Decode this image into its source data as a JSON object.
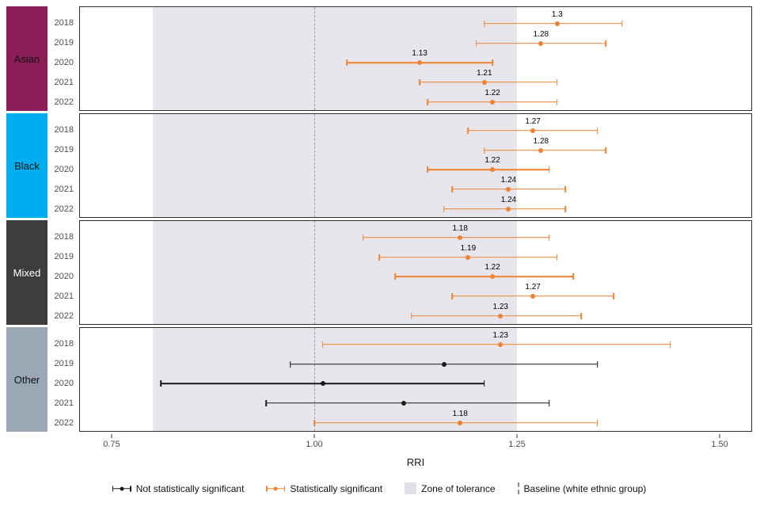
{
  "chart_data": {
    "type": "forest",
    "title": "",
    "xlabel": "RRI",
    "x_range": [
      0.71,
      1.54
    ],
    "x_ticks": [
      {
        "value": 0.75,
        "label": "0.75"
      },
      {
        "value": 1.0,
        "label": "1.00"
      },
      {
        "value": 1.25,
        "label": "1.25"
      },
      {
        "value": 1.5,
        "label": "1.50"
      }
    ],
    "zone_of_tolerance": {
      "from": 0.8,
      "to": 1.25,
      "color": "#e6e6ec"
    },
    "baseline": {
      "value": 1.0,
      "color": "#9b9b9b"
    },
    "colors": {
      "significant": "#ee8233",
      "not_significant": "#1a1a1a"
    },
    "groups": [
      {
        "name": "Asian",
        "color": "#8b1e57",
        "text_color": "#111111",
        "rows": [
          {
            "year": "2018",
            "value": 1.3,
            "label": "1.3",
            "lo": 1.21,
            "hi": 1.38,
            "significant": true
          },
          {
            "year": "2019",
            "value": 1.28,
            "label": "1.28",
            "lo": 1.2,
            "hi": 1.36,
            "significant": true
          },
          {
            "year": "2020",
            "value": 1.13,
            "label": "1.13",
            "lo": 1.04,
            "hi": 1.22,
            "significant": true
          },
          {
            "year": "2021",
            "value": 1.21,
            "label": "1.21",
            "lo": 1.13,
            "hi": 1.3,
            "significant": true
          },
          {
            "year": "2022",
            "value": 1.22,
            "label": "1.22",
            "lo": 1.14,
            "hi": 1.3,
            "significant": true
          }
        ]
      },
      {
        "name": "Black",
        "color": "#00aeef",
        "text_color": "#111111",
        "rows": [
          {
            "year": "2018",
            "value": 1.27,
            "label": "1.27",
            "lo": 1.19,
            "hi": 1.35,
            "significant": true
          },
          {
            "year": "2019",
            "value": 1.28,
            "label": "1.28",
            "lo": 1.21,
            "hi": 1.36,
            "significant": true
          },
          {
            "year": "2020",
            "value": 1.22,
            "label": "1.22",
            "lo": 1.14,
            "hi": 1.29,
            "significant": true
          },
          {
            "year": "2021",
            "value": 1.24,
            "label": "1.24",
            "lo": 1.17,
            "hi": 1.31,
            "significant": true
          },
          {
            "year": "2022",
            "value": 1.24,
            "label": "1.24",
            "lo": 1.16,
            "hi": 1.31,
            "significant": true
          }
        ]
      },
      {
        "name": "Mixed",
        "color": "#3d3d3d",
        "text_color": "#ffffff",
        "rows": [
          {
            "year": "2018",
            "value": 1.18,
            "label": "1.18",
            "lo": 1.06,
            "hi": 1.29,
            "significant": true
          },
          {
            "year": "2019",
            "value": 1.19,
            "label": "1.19",
            "lo": 1.08,
            "hi": 1.3,
            "significant": true
          },
          {
            "year": "2020",
            "value": 1.22,
            "label": "1.22",
            "lo": 1.1,
            "hi": 1.32,
            "significant": true
          },
          {
            "year": "2021",
            "value": 1.27,
            "label": "1.27",
            "lo": 1.17,
            "hi": 1.37,
            "significant": true
          },
          {
            "year": "2022",
            "value": 1.23,
            "label": "1.23",
            "lo": 1.12,
            "hi": 1.33,
            "significant": true
          }
        ]
      },
      {
        "name": "Other",
        "color": "#9aa7b5",
        "text_color": "#111111",
        "rows": [
          {
            "year": "2018",
            "value": 1.23,
            "label": "1.23",
            "lo": 1.01,
            "hi": 1.44,
            "significant": true
          },
          {
            "year": "2019",
            "value": 1.16,
            "label": "",
            "lo": 0.97,
            "hi": 1.35,
            "significant": false
          },
          {
            "year": "2020",
            "value": 1.01,
            "label": "",
            "lo": 0.81,
            "hi": 1.21,
            "significant": false
          },
          {
            "year": "2021",
            "value": 1.11,
            "label": "",
            "lo": 0.94,
            "hi": 1.29,
            "significant": false
          },
          {
            "year": "2022",
            "value": 1.18,
            "label": "1.18",
            "lo": 1.0,
            "hi": 1.35,
            "significant": true
          }
        ]
      }
    ]
  },
  "legend": {
    "items": [
      {
        "label": "Not statistically significant",
        "type": "errorbar",
        "color": "#1a1a1a"
      },
      {
        "label": "Statistically significant",
        "type": "errorbar",
        "color": "#ee8233"
      },
      {
        "label": "Zone of tolerance",
        "type": "box",
        "color": "#e0e0e8"
      },
      {
        "label": "Baseline (white ethnic group)",
        "type": "dashed",
        "color": "#8c8c8c"
      }
    ]
  }
}
